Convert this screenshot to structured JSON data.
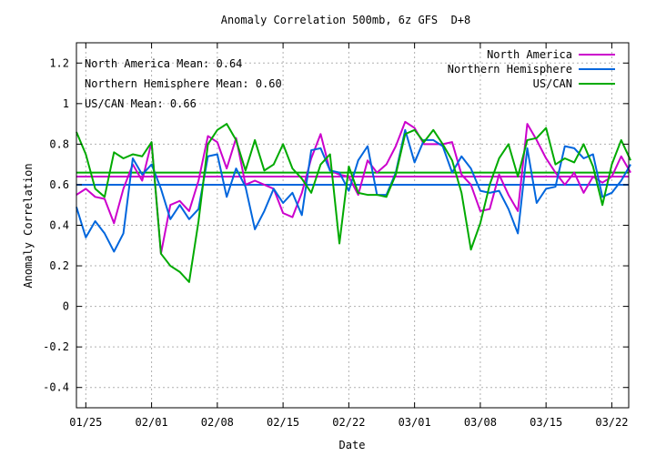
{
  "chart_data": {
    "type": "line",
    "title": "Anomaly Correlation 500mb, 6z GFS  D+8",
    "xlabel": "Date",
    "ylabel": "Anomaly Correlation",
    "ylim": [
      -0.5,
      1.3
    ],
    "grid": true,
    "legend_position": "top-right",
    "x_start": "01/24",
    "x_end": "03/24",
    "x_ticks": [
      {
        "label": "01/25",
        "x": 1
      },
      {
        "label": "02/01",
        "x": 8
      },
      {
        "label": "02/08",
        "x": 15
      },
      {
        "label": "02/15",
        "x": 22
      },
      {
        "label": "02/22",
        "x": 29
      },
      {
        "label": "03/01",
        "x": 36
      },
      {
        "label": "03/08",
        "x": 43
      },
      {
        "label": "03/15",
        "x": 50
      },
      {
        "label": "03/22",
        "x": 57
      }
    ],
    "y_ticks": [
      {
        "label": "-0.4",
        "value": -0.4
      },
      {
        "label": "-0.2",
        "value": -0.2
      },
      {
        "label": "0",
        "value": 0
      },
      {
        "label": "0.2",
        "value": 0.2
      },
      {
        "label": "0.4",
        "value": 0.4
      },
      {
        "label": "0.6",
        "value": 0.6
      },
      {
        "label": "0.8",
        "value": 0.8
      },
      {
        "label": "1",
        "value": 1
      },
      {
        "label": "1.2",
        "value": 1.2
      }
    ],
    "annotations": [
      "North America Mean: 0.64",
      "Northern Hemisphere Mean: 0.60",
      "US/CAN Mean: 0.66"
    ],
    "series": [
      {
        "name": "North America",
        "color": "#cc00cc",
        "mean": 0.64,
        "values": [
          0.55,
          0.58,
          0.54,
          0.53,
          0.41,
          0.58,
          0.7,
          0.62,
          0.81,
          0.26,
          0.5,
          0.52,
          0.47,
          0.62,
          0.84,
          0.81,
          0.68,
          0.83,
          0.6,
          0.62,
          0.6,
          0.58,
          0.46,
          0.44,
          0.56,
          0.73,
          0.85,
          0.67,
          0.65,
          0.64,
          0.55,
          0.72,
          0.66,
          0.7,
          0.79,
          0.91,
          0.88,
          0.8,
          0.8,
          0.8,
          0.81,
          0.65,
          0.6,
          0.47,
          0.48,
          0.65,
          0.55,
          0.47,
          0.9,
          0.82,
          0.73,
          0.66,
          0.6,
          0.66,
          0.56,
          0.64,
          0.61,
          0.64,
          0.74,
          0.66
        ]
      },
      {
        "name": "Northern Hemisphere",
        "color": "#0066dd",
        "mean": 0.6,
        "values": [
          0.49,
          0.34,
          0.42,
          0.36,
          0.27,
          0.36,
          0.73,
          0.65,
          0.7,
          0.58,
          0.43,
          0.5,
          0.43,
          0.48,
          0.74,
          0.75,
          0.54,
          0.68,
          0.59,
          0.38,
          0.47,
          0.58,
          0.51,
          0.56,
          0.45,
          0.77,
          0.78,
          0.67,
          0.66,
          0.57,
          0.72,
          0.79,
          0.55,
          0.55,
          0.66,
          0.87,
          0.71,
          0.82,
          0.82,
          0.79,
          0.66,
          0.74,
          0.68,
          0.57,
          0.56,
          0.57,
          0.48,
          0.36,
          0.78,
          0.51,
          0.58,
          0.59,
          0.79,
          0.78,
          0.73,
          0.75,
          0.54,
          0.56,
          0.62,
          0.7
        ]
      },
      {
        "name": "US/CAN",
        "color": "#00aa00",
        "mean": 0.66,
        "values": [
          0.86,
          0.75,
          0.58,
          0.54,
          0.76,
          0.73,
          0.75,
          0.74,
          0.81,
          0.26,
          0.2,
          0.17,
          0.12,
          0.42,
          0.8,
          0.87,
          0.9,
          0.82,
          0.67,
          0.82,
          0.67,
          0.7,
          0.8,
          0.68,
          0.63,
          0.56,
          0.7,
          0.75,
          0.31,
          0.69,
          0.56,
          0.55,
          0.55,
          0.54,
          0.65,
          0.85,
          0.87,
          0.81,
          0.87,
          0.8,
          0.72,
          0.56,
          0.28,
          0.41,
          0.6,
          0.73,
          0.8,
          0.64,
          0.82,
          0.83,
          0.88,
          0.7,
          0.73,
          0.71,
          0.8,
          0.69,
          0.5,
          0.7,
          0.82,
          0.72
        ]
      }
    ]
  }
}
